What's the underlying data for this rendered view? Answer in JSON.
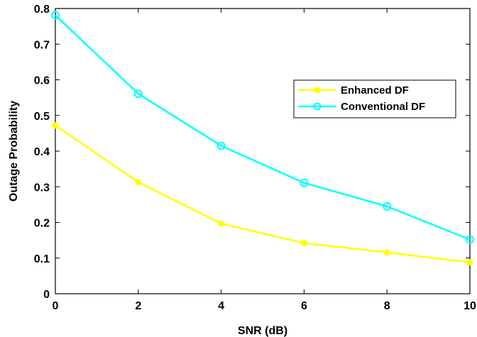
{
  "chart_data": {
    "type": "line",
    "xlabel": "SNR (dB)",
    "ylabel": "Outage Probability",
    "xlim": [
      0,
      10
    ],
    "ylim": [
      0,
      0.8
    ],
    "xticks": [
      0,
      2,
      4,
      6,
      8,
      10
    ],
    "yticks": [
      0,
      0.1,
      0.2,
      0.3,
      0.4,
      0.5,
      0.6,
      0.7,
      0.8
    ],
    "xtick_labels": [
      "0",
      "2",
      "4",
      "6",
      "8",
      "10"
    ],
    "ytick_labels": [
      "0",
      "0.1",
      "0.2",
      "0.3",
      "0.4",
      "0.5",
      "0.6",
      "0.7",
      "0.8"
    ],
    "x": [
      0,
      2,
      4,
      6,
      8,
      10
    ],
    "grid": false,
    "legend_position": "right",
    "series": [
      {
        "name": "Enhanced DF",
        "color": "#ffff00",
        "marker": "filled-circle",
        "values": [
          0.472,
          0.313,
          0.197,
          0.142,
          0.116,
          0.088
        ]
      },
      {
        "name": "Conventional DF",
        "color": "#00ffff",
        "marker": "open-circle",
        "values": [
          0.781,
          0.561,
          0.415,
          0.311,
          0.245,
          0.152
        ]
      }
    ]
  }
}
